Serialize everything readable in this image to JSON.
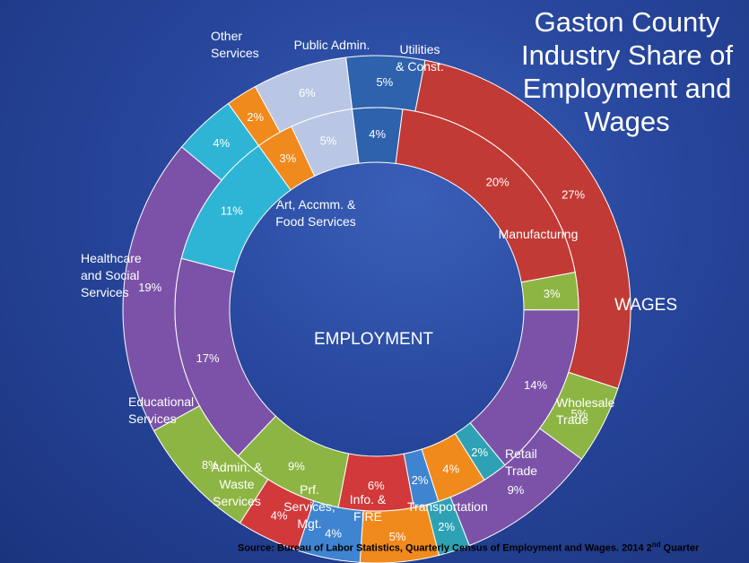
{
  "title": "Gaston County Industry Share of Employment and Wages",
  "source": {
    "text": "Source: Bureau of Labor Statistics, Quarterly Census of Employment and Wages.  2014 2",
    "sup": "nd",
    "tail": " Quarter"
  },
  "chart_data": {
    "type": "donut",
    "title": "Gaston County Industry Share of Employment and Wages",
    "categories": [
      "Utilities & Const.",
      "Manufacturing",
      "Wholesale Trade",
      "Retail Trade",
      "Transportation",
      "Info. & FIRE",
      "Prf. Services, Mgt.",
      "Admin. & Waste Services",
      "Educational Services",
      "Healthcare and Social Services",
      "Art, Accmm. & Food Services",
      "Other Services",
      "Public Admin."
    ],
    "colors": [
      "#2e62ad",
      "#c23a35",
      "#8db544",
      "#7b52a8",
      "#2ea2b4",
      "#f18a1c",
      "#3f84d0",
      "#d2393a",
      "#8db544",
      "#7b52a8",
      "#2eb5d6",
      "#f18a1c",
      "#b9c7e5"
    ],
    "series": [
      {
        "name": "WAGES",
        "ring": "outer",
        "values": [
          5,
          27,
          5,
          9,
          2,
          5,
          4,
          4,
          8,
          19,
          4,
          2,
          6
        ],
        "labels": [
          "5%",
          "27%",
          "5%",
          "9%",
          "2%",
          "5%",
          "4%",
          "4%",
          "8%",
          "19%",
          "4%",
          "2%",
          "6%"
        ]
      },
      {
        "name": "EMPLOYMENT",
        "ring": "inner",
        "values": [
          4,
          20,
          3,
          14,
          2,
          4,
          2,
          6,
          9,
          17,
          11,
          3,
          5
        ],
        "labels": [
          "4%",
          "20%",
          "3%",
          "14%",
          "2%",
          "4%",
          "2%",
          "6%",
          "9%",
          "17%",
          "11%",
          "3%",
          "5%"
        ]
      }
    ],
    "category_labels": [
      {
        "text": [
          "Utilities",
          "& Const."
        ]
      },
      {
        "text": [
          "Manufacturing"
        ]
      },
      {
        "text": [
          "Wholesale",
          "Trade"
        ]
      },
      {
        "text": [
          "Retail",
          "Trade"
        ]
      },
      {
        "text": [
          "Transportation"
        ]
      },
      {
        "text": [
          "Info. &",
          "FIRE"
        ]
      },
      {
        "text": [
          "Prf.",
          "Services,",
          "Mgt."
        ]
      },
      {
        "text": [
          "Admin. &",
          "Waste",
          "Services"
        ]
      },
      {
        "text": [
          "Educational",
          "Services"
        ]
      },
      {
        "text": [
          "Healthcare",
          "and Social",
          "Services"
        ]
      },
      {
        "text": [
          "Art, Accmm. &",
          "Food Services"
        ]
      },
      {
        "text": [
          "Other",
          "Services"
        ]
      },
      {
        "text": [
          "Public Admin."
        ]
      }
    ]
  }
}
